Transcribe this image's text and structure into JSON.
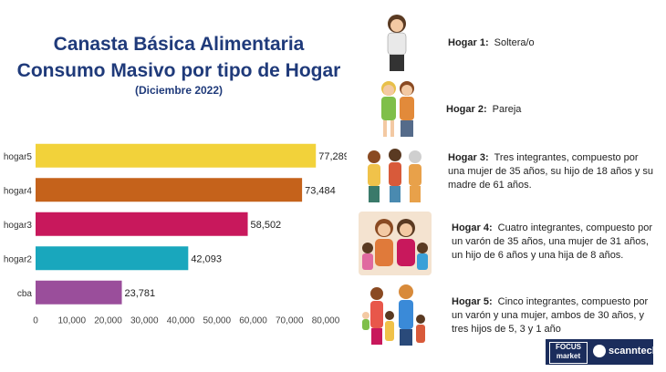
{
  "header": {
    "title_line1": "Canasta Básica Alimentaria",
    "title_line2": "Consumo Masivo por tipo de Hogar",
    "subtitle": "(Diciembre 2022)"
  },
  "chart_data": {
    "type": "bar",
    "orientation": "horizontal",
    "categories": [
      "hogar5",
      "hogar4",
      "hogar3",
      "hogar2",
      "cba"
    ],
    "values": [
      77289,
      73484,
      58502,
      42093,
      23781
    ],
    "value_labels": [
      "77,289",
      "73,484",
      "58,502",
      "42,093",
      "23,781"
    ],
    "colors": [
      "#f2d23a",
      "#c5621b",
      "#c8185c",
      "#19a7bd",
      "#9a4e9b"
    ],
    "xlim": [
      0,
      80000
    ],
    "xticks": [
      "0",
      "10,000",
      "20,000",
      "30,000",
      "40,000",
      "50,000",
      "60,000",
      "70,000",
      "80,000"
    ],
    "grid": false
  },
  "households": [
    {
      "label": "Hogar 1:",
      "description": "Soltera/o"
    },
    {
      "label": "Hogar 2:",
      "description": "Pareja"
    },
    {
      "label": "Hogar 3:",
      "description": "Tres integrantes, compuesto por una mujer de 35 años, su hijo de 18 años y su madre de 61 años."
    },
    {
      "label": "Hogar 4:",
      "description": "Cuatro integrantes, compuesto por un varón de 35 años, una mujer de 31 años, un hijo de 6 años y una hija de 8 años."
    },
    {
      "label": "Hogar 5:",
      "description": "Cinco integrantes, compuesto por un varón y una mujer, ambos de 30 años, y tres hijos de 5, 3 y 1 año"
    }
  ],
  "logos": {
    "focus_line1": "FOCUS",
    "focus_line2": "market",
    "scanntech": "scanntech"
  }
}
